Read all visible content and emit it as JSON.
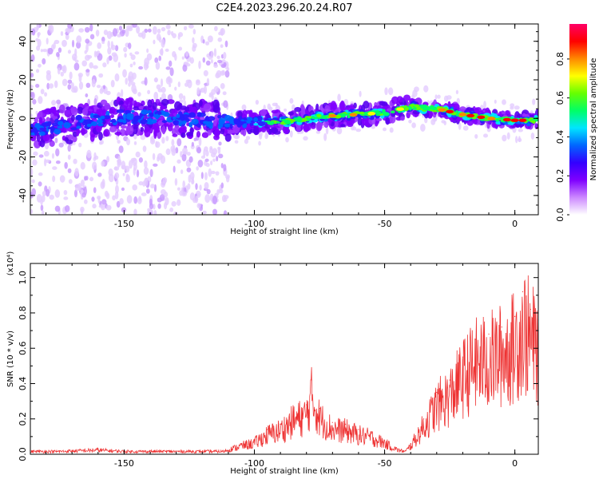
{
  "chart_data": [
    {
      "type": "heatmap",
      "title": "C2E4.2023.296.20.24.R07",
      "xlabel": "Height of straight line (km)",
      "ylabel": "Frequency (Hz)",
      "xlim": [
        -186,
        9
      ],
      "ylim": [
        -50,
        49
      ],
      "xticks": [
        -150,
        -100,
        -50,
        0
      ],
      "yticks": [
        -40,
        -20,
        0,
        20,
        40
      ],
      "ridge": {
        "x": [
          -186,
          -170,
          -150,
          -130,
          -110,
          -90,
          -75,
          -60,
          -50,
          -40,
          -30,
          -20,
          -10,
          0,
          9
        ],
        "y": [
          -6,
          -3,
          1,
          0,
          -2,
          -2,
          1,
          2,
          3,
          6,
          5,
          2,
          0,
          -1,
          -1
        ]
      },
      "colorbar": {
        "label": "Normalized spectral amplitude",
        "range": [
          0.0,
          0.98
        ],
        "ticks": [
          "0.0",
          "0.2",
          "0.4",
          "0.6",
          "0.8"
        ],
        "colors": [
          "#ffffff",
          "#cc88ff",
          "#7f00ff",
          "#3300ff",
          "#0066ff",
          "#00e5ff",
          "#00ff66",
          "#66ff00",
          "#ffff00",
          "#ff8800",
          "#ff0000",
          "#ff0066"
        ]
      }
    },
    {
      "type": "line",
      "xlabel": "Height of straight line (km)",
      "ylabel": "SNR (10 * v/v)",
      "scale_note": "(x10⁴)",
      "xlim": [
        -186,
        9
      ],
      "ylim": [
        0,
        1.08
      ],
      "xticks": [
        -150,
        -100,
        -50,
        0
      ],
      "yticks": [
        "0.0",
        "0.2",
        "0.4",
        "0.6",
        "0.8",
        "1.0"
      ],
      "ytick_values": [
        0,
        0.2,
        0.4,
        0.6,
        0.8,
        1.0
      ],
      "color": "#ee3333",
      "series": [
        {
          "x": [
            -186,
            -175,
            -160,
            -150,
            -140,
            -125,
            -112,
            -105,
            -100,
            -95,
            -90,
            -85,
            -80,
            -78,
            -75,
            -70,
            -65,
            -60,
            -55,
            -50,
            -45,
            -42,
            -40,
            -35,
            -30,
            -25,
            -20,
            -15,
            -10,
            -5,
            0,
            3,
            6,
            9
          ],
          "y": [
            0.02,
            0.02,
            0.03,
            0.02,
            0.02,
            0.02,
            0.02,
            0.06,
            0.08,
            0.14,
            0.17,
            0.24,
            0.28,
            0.42,
            0.26,
            0.18,
            0.17,
            0.14,
            0.12,
            0.08,
            0.03,
            0.02,
            0.06,
            0.2,
            0.35,
            0.42,
            0.55,
            0.65,
            0.68,
            0.72,
            0.78,
            0.92,
            0.82,
            0.76
          ]
        }
      ]
    }
  ]
}
